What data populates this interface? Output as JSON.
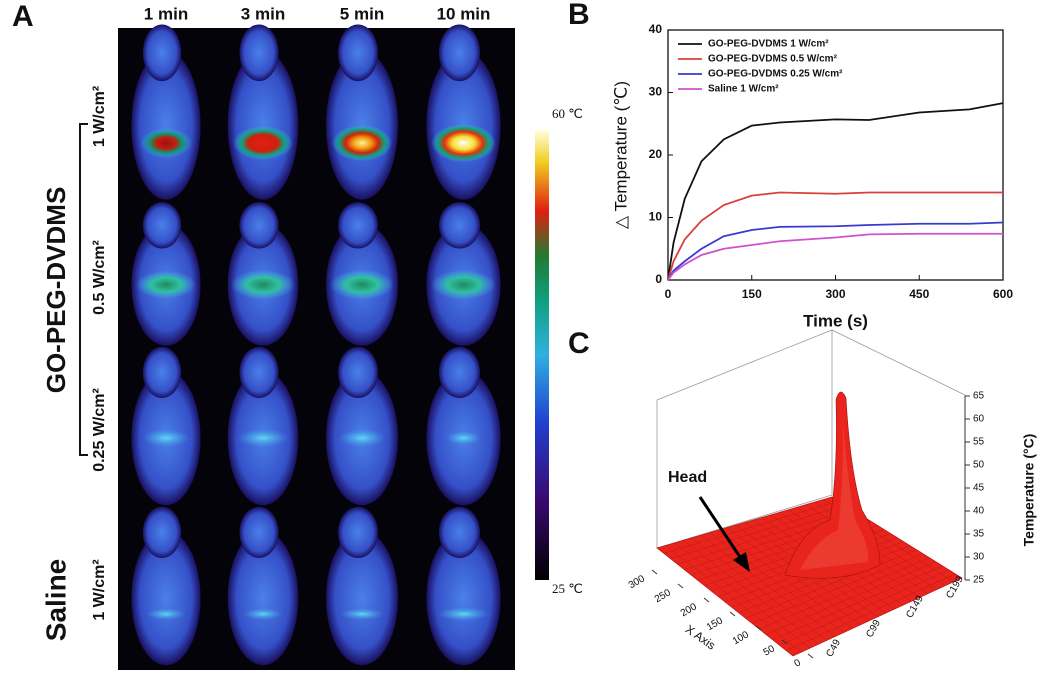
{
  "panel_a": {
    "label": "A",
    "columns": [
      "1 min",
      "3 min",
      "5 min",
      "10 min"
    ],
    "rows": [
      {
        "label": "1 W/cm²"
      },
      {
        "label": "0.5 W/cm²"
      },
      {
        "label": "0.25 W/cm²"
      },
      {
        "label": "1 W/cm²"
      }
    ],
    "groups": [
      "GO-PEG-DVDMS",
      "Saline"
    ],
    "colorbar": {
      "max_label": "60 ℃",
      "min_label": "25 ℃"
    }
  },
  "chart_data": [
    {
      "type": "line",
      "panel_label": "B",
      "y_label": "△ Temperature (℃)",
      "x_label": "Time (s)",
      "x": [
        0,
        10,
        30,
        60,
        100,
        150,
        200,
        300,
        360,
        450,
        540,
        600
      ],
      "series": [
        {
          "name": "GO-PEG-DVDMS 1 W/cm²",
          "color": "#111111",
          "values": [
            0,
            6,
            13,
            19,
            22.5,
            24.7,
            25.2,
            25.7,
            25.6,
            26.8,
            27.3,
            28.3
          ]
        },
        {
          "name": "GO-PEG-DVDMS 0.5 W/cm²",
          "color": "#d9403a",
          "values": [
            0,
            3,
            6.5,
            9.5,
            12,
            13.5,
            14,
            13.8,
            14,
            14,
            14,
            14
          ]
        },
        {
          "name": "GO-PEG-DVDMS 0.25 W/cm²",
          "color": "#3a3ad0",
          "values": [
            0,
            1.5,
            3,
            5,
            7,
            8,
            8.5,
            8.6,
            8.8,
            9,
            9,
            9.2
          ]
        },
        {
          "name": "Saline 1 W/cm²",
          "color": "#d050d0",
          "values": [
            0,
            1.2,
            2.5,
            4,
            5,
            5.6,
            6.2,
            6.8,
            7.3,
            7.4,
            7.4,
            7.4
          ]
        }
      ],
      "xlim": [
        0,
        600
      ],
      "xticks": [
        0,
        150,
        300,
        450,
        600
      ],
      "ylim": [
        0,
        40
      ],
      "yticks": [
        0,
        10,
        20,
        30,
        40
      ],
      "legend": "upper-left"
    },
    {
      "type": "surface3d",
      "panel_label": "C",
      "annotation": "Head",
      "x_label": "X Axis",
      "z_label": "Temperature (°C)",
      "color": "#e8241c",
      "xlim": [
        0,
        300
      ],
      "xticks": [
        0,
        50,
        100,
        150,
        200,
        250,
        300
      ],
      "ytick_labels": [
        "C49",
        "C99",
        "C149",
        "C199"
      ],
      "zlim": [
        25,
        65
      ],
      "zticks": [
        25,
        30,
        35,
        40,
        45,
        50,
        55,
        60,
        65
      ]
    }
  ]
}
